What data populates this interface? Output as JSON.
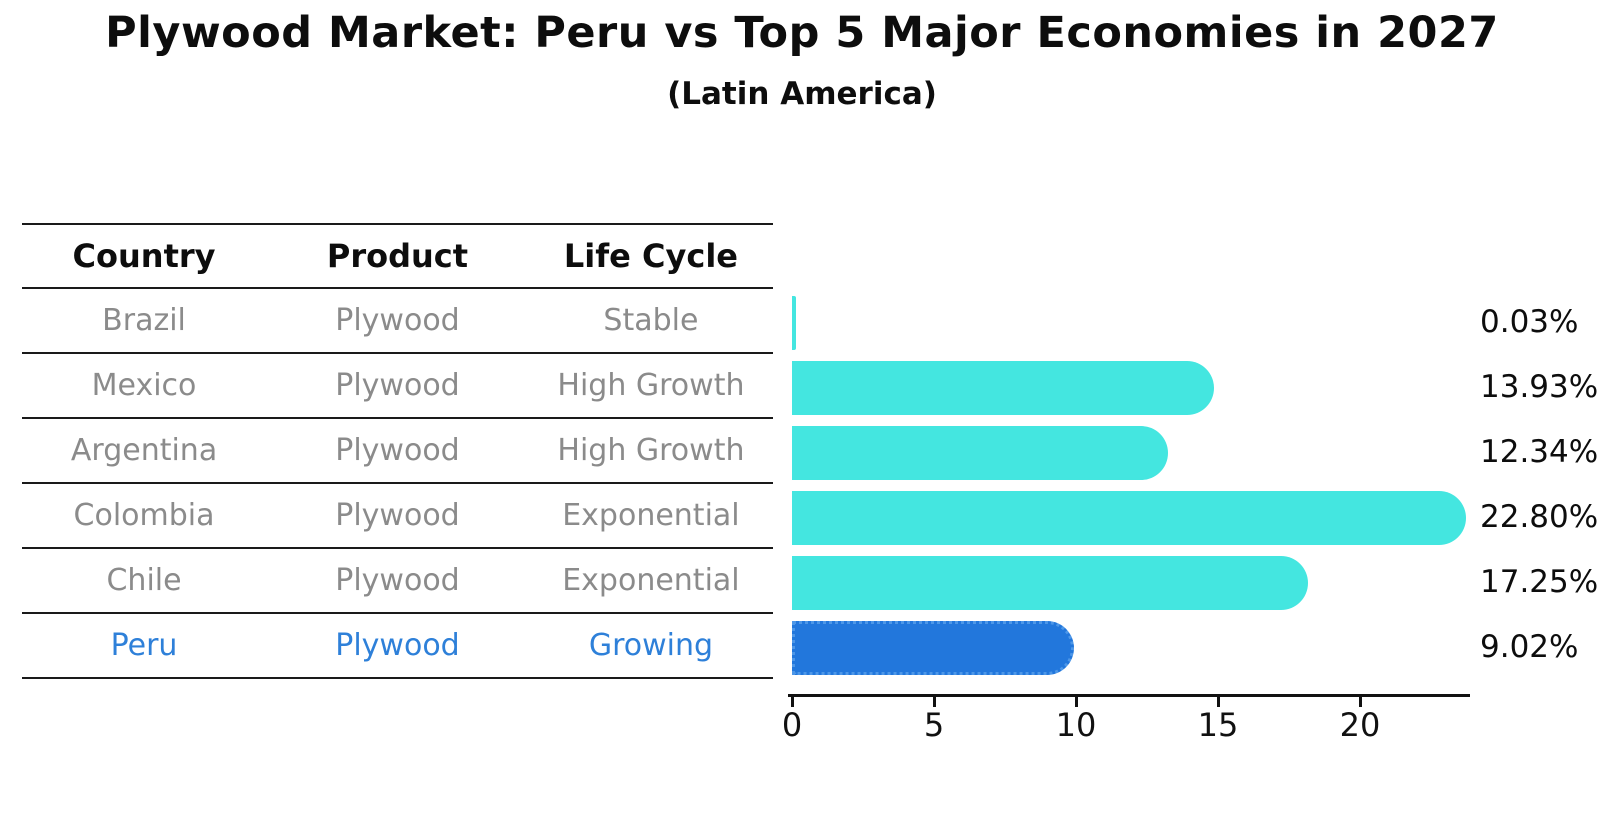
{
  "title": "Plywood Market: Peru vs Top 5 Major Economies in 2027",
  "subtitle": "(Latin America)",
  "table": {
    "headers": [
      "Country",
      "Product",
      "Life Cycle"
    ],
    "rows": [
      {
        "country": "Brazil",
        "product": "Plywood",
        "life_cycle": "Stable",
        "highlight": false
      },
      {
        "country": "Mexico",
        "product": "Plywood",
        "life_cycle": "High Growth",
        "highlight": false
      },
      {
        "country": "Argentina",
        "product": "Plywood",
        "life_cycle": "High Growth",
        "highlight": false
      },
      {
        "country": "Colombia",
        "product": "Plywood",
        "life_cycle": "Exponential",
        "highlight": false
      },
      {
        "country": "Chile",
        "product": "Plywood",
        "life_cycle": "Exponential",
        "highlight": false
      },
      {
        "country": "Peru",
        "product": "Plywood",
        "life_cycle": "Growing",
        "highlight": true
      }
    ]
  },
  "chart_data": {
    "type": "bar",
    "orientation": "horizontal",
    "title": "Plywood Market: Peru vs Top 5 Major Economies in 2027",
    "subtitle": "(Latin America)",
    "categories": [
      "Brazil",
      "Mexico",
      "Argentina",
      "Colombia",
      "Chile",
      "Peru"
    ],
    "values": [
      0.03,
      13.93,
      12.34,
      22.8,
      17.25,
      9.02
    ],
    "value_labels": [
      "0.03%",
      "13.93%",
      "12.34%",
      "22.80%",
      "17.25%",
      "9.02%"
    ],
    "x_ticks": [
      "0",
      "5",
      "10",
      "15",
      "20"
    ],
    "x_tick_values": [
      0,
      5,
      10,
      15,
      20
    ],
    "xlim": [
      0,
      23.9
    ],
    "grid": false,
    "legend": false,
    "bar_color": "#44e6e0",
    "highlight_color": "#2277dc",
    "highlight_text_color": "#2e80d9",
    "highlight_index": 5
  }
}
